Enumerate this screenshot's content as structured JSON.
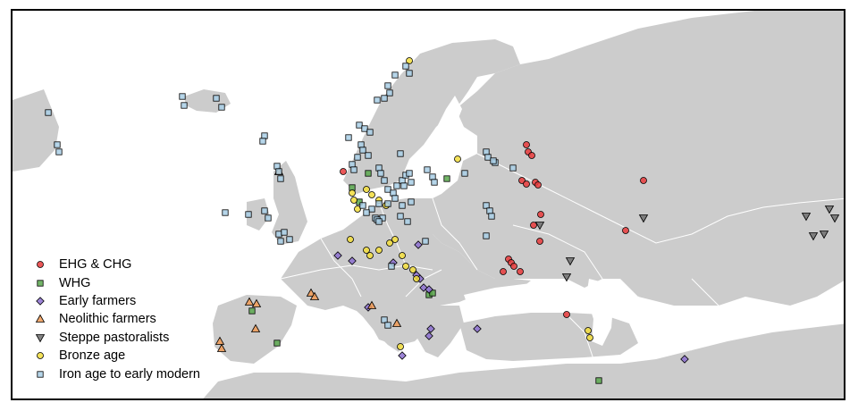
{
  "legend": {
    "items": [
      {
        "key": "ehg",
        "label": "EHG & CHG",
        "shape": "circle",
        "fill": "#e8393b"
      },
      {
        "key": "whg",
        "label": "WHG",
        "shape": "square",
        "fill": "#5aa84e"
      },
      {
        "key": "early",
        "label": "Early farmers",
        "shape": "diamond",
        "fill": "#8b6fcf"
      },
      {
        "key": "neo",
        "label": "Neolithic farmers",
        "shape": "triangle-up",
        "fill": "#f09a55"
      },
      {
        "key": "steppe",
        "label": "Steppe pastoralists",
        "shape": "triangle-down",
        "fill": "#6f6f6f"
      },
      {
        "key": "bronze",
        "label": "Bronze age",
        "shape": "circle",
        "fill": "#f2dd3c"
      },
      {
        "key": "iron",
        "label": "Iron age to early modern",
        "shape": "square",
        "fill": "#a9cfe6"
      }
    ]
  },
  "colors": {
    "land": "#cccccc",
    "sea": "#ffffff",
    "border": "#ffffff",
    "outline": "#000000"
  }
}
